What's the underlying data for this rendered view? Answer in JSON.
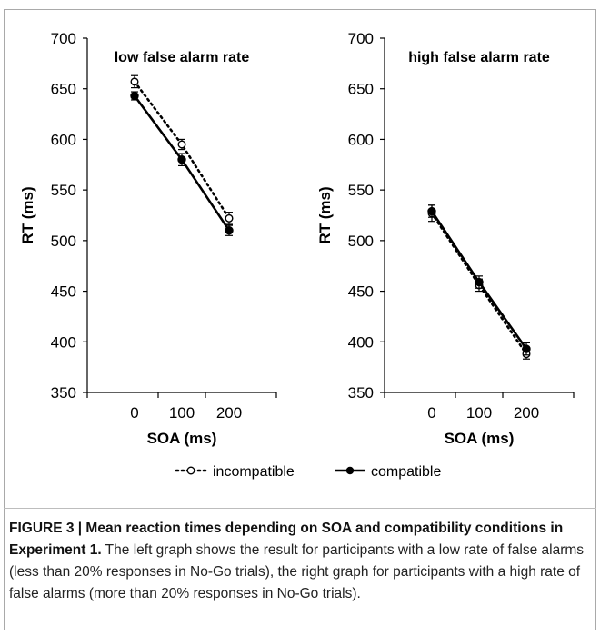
{
  "chart_data": [
    {
      "type": "line",
      "title": "low false alarm rate",
      "xlabel": "SOA (ms)",
      "ylabel": "RT (ms)",
      "x": [
        0,
        100,
        200
      ],
      "xlim": [
        -100,
        300
      ],
      "ylim": [
        350,
        700
      ],
      "xticks": [
        "0",
        "100",
        "200"
      ],
      "yticks": [
        "350",
        "400",
        "450",
        "500",
        "550",
        "600",
        "650",
        "700"
      ],
      "series": [
        {
          "name": "incompatible",
          "values": [
            657,
            595,
            522
          ],
          "error": [
            6,
            5,
            6
          ],
          "style": "dotted",
          "marker": "open-circle"
        },
        {
          "name": "compatible",
          "values": [
            643,
            580,
            510
          ],
          "error": [
            4,
            6,
            5
          ],
          "style": "solid",
          "marker": "filled-circle"
        }
      ],
      "grid": false
    },
    {
      "type": "line",
      "title": "high false alarm rate",
      "xlabel": "SOA (ms)",
      "ylabel": "RT (ms)",
      "x": [
        0,
        100,
        200
      ],
      "xlim": [
        -100,
        300
      ],
      "ylim": [
        350,
        700
      ],
      "xticks": [
        "0",
        "100",
        "200"
      ],
      "yticks": [
        "350",
        "400",
        "450",
        "500",
        "550",
        "600",
        "650",
        "700"
      ],
      "series": [
        {
          "name": "incompatible",
          "values": [
            527,
            456,
            388
          ],
          "error": [
            8,
            6,
            5
          ],
          "style": "dotted",
          "marker": "open-circle"
        },
        {
          "name": "compatible",
          "values": [
            529,
            459,
            393
          ],
          "error": [
            6,
            6,
            6
          ],
          "style": "solid",
          "marker": "filled-circle"
        }
      ],
      "grid": false
    }
  ],
  "legend": {
    "items": [
      {
        "label": "incompatible",
        "style": "dotted",
        "marker": "open-circle"
      },
      {
        "label": "compatible",
        "style": "solid",
        "marker": "filled-circle"
      }
    ],
    "placement": "bottom-center"
  },
  "caption": {
    "bold": "FIGURE 3 | Mean reaction times depending on SOA and compatibility conditions in Experiment 1.",
    "text": " The left graph shows the result for participants with a low rate of false alarms (less than 20% responses in No-Go trials), the right graph for participants with a high rate of false alarms (more than 20% responses in No-Go trials)."
  },
  "colors": {
    "line": "#000000",
    "border": "#a9a9a9"
  }
}
